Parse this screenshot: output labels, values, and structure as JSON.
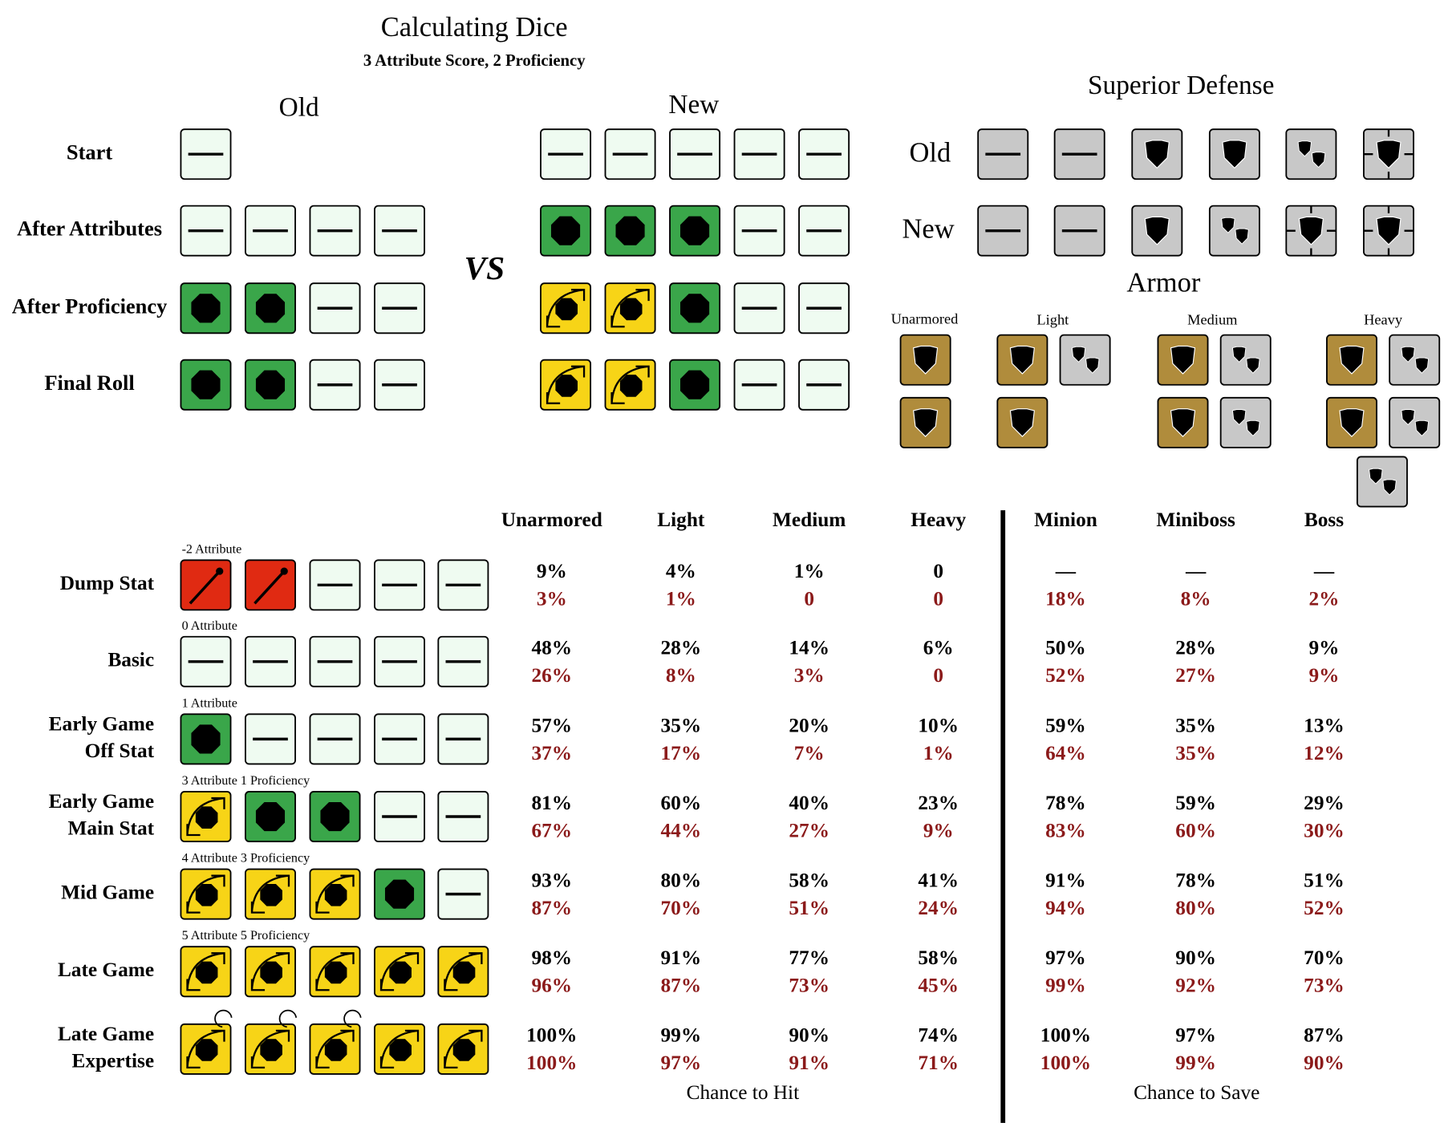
{
  "header": {
    "title": "Calculating Dice",
    "subtitle": "3 Attribute Score, 2 Proficiency"
  },
  "comparison": {
    "old_heading": "Old",
    "new_heading": "New",
    "vs": "VS",
    "rows": [
      "Start",
      "After Attributes",
      "After Proficiency",
      "Final Roll"
    ]
  },
  "superior_defense": {
    "title": "Superior Defense",
    "rows": [
      "Old",
      "New"
    ],
    "armor_title": "Armor",
    "armor_types": [
      "Unarmored",
      "Light",
      "Medium",
      "Heavy"
    ]
  },
  "table": {
    "columns": [
      "Unarmored",
      "Light",
      "Medium",
      "Heavy",
      "Minion",
      "Miniboss",
      "Boss"
    ],
    "rows": [
      {
        "label": [
          "Dump Stat"
        ],
        "note": "-2 Attribute",
        "cells": [
          [
            "9%",
            "3%"
          ],
          [
            "4%",
            "1%"
          ],
          [
            "1%",
            "0"
          ],
          [
            "0",
            "0"
          ],
          [
            "—",
            "18%"
          ],
          [
            "—",
            "8%"
          ],
          [
            "—",
            "2%"
          ]
        ]
      },
      {
        "label": [
          "Basic"
        ],
        "note": "0 Attribute",
        "cells": [
          [
            "48%",
            "26%"
          ],
          [
            "28%",
            "8%"
          ],
          [
            "14%",
            "3%"
          ],
          [
            "6%",
            "0"
          ],
          [
            "50%",
            "52%"
          ],
          [
            "28%",
            "27%"
          ],
          [
            "9%",
            "9%"
          ]
        ]
      },
      {
        "label": [
          "Early Game",
          "Off Stat"
        ],
        "note": "1 Attribute",
        "cells": [
          [
            "57%",
            "37%"
          ],
          [
            "35%",
            "17%"
          ],
          [
            "20%",
            "7%"
          ],
          [
            "10%",
            "1%"
          ],
          [
            "59%",
            "64%"
          ],
          [
            "35%",
            "35%"
          ],
          [
            "13%",
            "12%"
          ]
        ]
      },
      {
        "label": [
          "Early Game",
          "Main Stat"
        ],
        "note": "3 Attribute 1 Proficiency",
        "cells": [
          [
            "81%",
            "67%"
          ],
          [
            "60%",
            "44%"
          ],
          [
            "40%",
            "27%"
          ],
          [
            "23%",
            "9%"
          ],
          [
            "78%",
            "83%"
          ],
          [
            "59%",
            "60%"
          ],
          [
            "29%",
            "30%"
          ]
        ]
      },
      {
        "label": [
          "Mid Game"
        ],
        "note": "4 Attribute 3 Proficiency",
        "cells": [
          [
            "93%",
            "87%"
          ],
          [
            "80%",
            "70%"
          ],
          [
            "58%",
            "51%"
          ],
          [
            "41%",
            "24%"
          ],
          [
            "91%",
            "94%"
          ],
          [
            "78%",
            "80%"
          ],
          [
            "51%",
            "52%"
          ]
        ]
      },
      {
        "label": [
          "Late Game"
        ],
        "note": "5 Attribute 5 Proficiency",
        "cells": [
          [
            "98%",
            "96%"
          ],
          [
            "91%",
            "87%"
          ],
          [
            "77%",
            "73%"
          ],
          [
            "58%",
            "45%"
          ],
          [
            "97%",
            "99%"
          ],
          [
            "90%",
            "92%"
          ],
          [
            "70%",
            "73%"
          ]
        ]
      },
      {
        "label": [
          "Late Game",
          "Expertise"
        ],
        "cells": [
          [
            "100%",
            "100%"
          ],
          [
            "99%",
            "97%"
          ],
          [
            "90%",
            "91%"
          ],
          [
            "74%",
            "71%"
          ],
          [
            "100%",
            "100%"
          ],
          [
            "97%",
            "99%"
          ],
          [
            "87%",
            "90%"
          ]
        ]
      }
    ],
    "hit_caption": "Chance to Hit",
    "save_caption": "Chance to Save"
  }
}
